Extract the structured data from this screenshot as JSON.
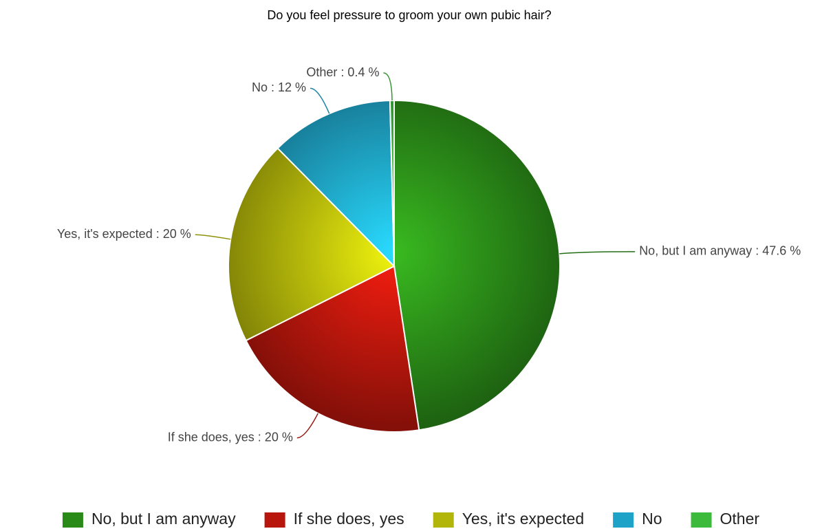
{
  "chart_data": {
    "type": "pie",
    "title": "Do you feel pressure to groom your own pubic hair?",
    "categories": [
      "No, but I am anyway",
      "If she does, yes",
      "Yes, it's expected",
      "No",
      "Other"
    ],
    "values": [
      47.6,
      20,
      20,
      12,
      0.4
    ],
    "value_labels": [
      "No, but I am anyway : 47.6 %",
      "If she does, yes : 20 %",
      "Yes, it's expected : 20 %",
      "No : 12 %",
      "Other : 0.4 %"
    ],
    "colors": [
      "#2a8a18",
      "#b8160c",
      "#b2b50a",
      "#1ea2c8",
      "#3cba3c"
    ],
    "legend": "bottom"
  }
}
